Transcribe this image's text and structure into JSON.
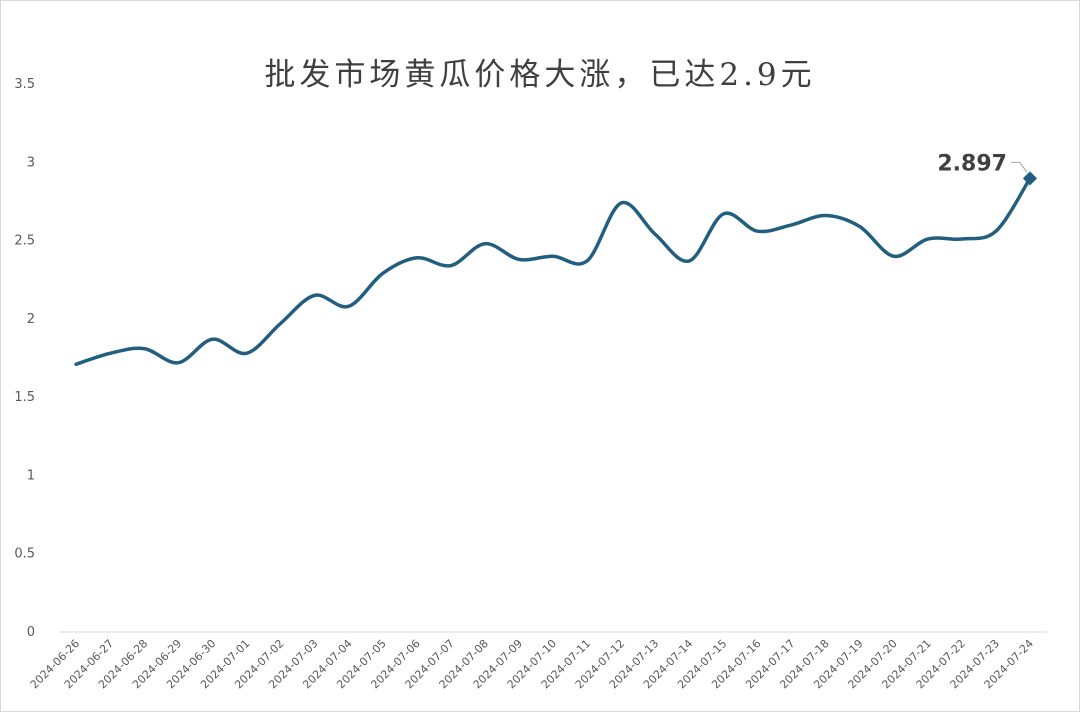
{
  "chart_data": {
    "type": "line",
    "title": "批发市场黄瓜价格大涨，已达2.9元",
    "xlabel": "",
    "ylabel": "",
    "ylim": [
      0,
      3.5
    ],
    "yticks": [
      "0",
      "0.5",
      "1",
      "1.5",
      "2",
      "2.5",
      "3",
      "3.5"
    ],
    "grid": false,
    "legend": "none",
    "line_color": "#215E7F",
    "categories": [
      "2024-06-26",
      "2024-06-27",
      "2024-06-28",
      "2024-06-29",
      "2024-06-30",
      "2024-07-01",
      "2024-07-02",
      "2024-07-03",
      "2024-07-04",
      "2024-07-05",
      "2024-07-06",
      "2024-07-07",
      "2024-07-08",
      "2024-07-09",
      "2024-07-10",
      "2024-07-11",
      "2024-07-12",
      "2024-07-13",
      "2024-07-14",
      "2024-07-15",
      "2024-07-16",
      "2024-07-17",
      "2024-07-18",
      "2024-07-19",
      "2024-07-20",
      "2024-07-21",
      "2024-07-22",
      "2024-07-23",
      "2024-07-24"
    ],
    "values": [
      1.71,
      1.78,
      1.81,
      1.72,
      1.87,
      1.78,
      1.97,
      2.15,
      2.08,
      2.29,
      2.39,
      2.34,
      2.48,
      2.38,
      2.4,
      2.37,
      2.74,
      2.54,
      2.37,
      2.67,
      2.56,
      2.6,
      2.66,
      2.59,
      2.4,
      2.51,
      2.51,
      2.56,
      2.897
    ],
    "annotation": {
      "index": 28,
      "text": "2.897"
    }
  }
}
